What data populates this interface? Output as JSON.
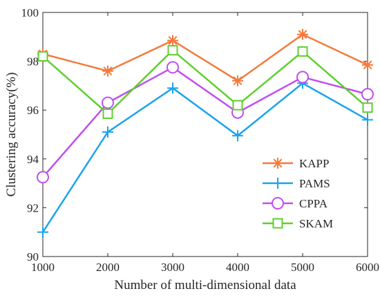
{
  "chart_data": {
    "type": "line",
    "xlabel": "Number of multi-dimensional data",
    "ylabel": "Clustering accuracy(%)",
    "x": [
      1000,
      2000,
      3000,
      4000,
      5000,
      6000
    ],
    "x_ticks": [
      1000,
      2000,
      3000,
      4000,
      5000,
      6000
    ],
    "y_ticks": [
      90,
      92,
      94,
      96,
      98,
      100
    ],
    "xlim": [
      1000,
      6000
    ],
    "ylim": [
      90,
      100
    ],
    "grid": false,
    "legend_position": "lower-right",
    "series": [
      {
        "name": "KAPP",
        "color": "#f47a3b",
        "marker": "asterisk",
        "values": [
          98.3,
          97.6,
          98.85,
          97.2,
          99.1,
          97.85
        ]
      },
      {
        "name": "PAMS",
        "color": "#1aa3ec",
        "marker": "plus",
        "values": [
          91.0,
          95.1,
          96.9,
          94.95,
          97.1,
          95.6
        ]
      },
      {
        "name": "CPPA",
        "color": "#c04ef0",
        "marker": "circle",
        "values": [
          93.25,
          96.3,
          97.75,
          95.9,
          97.35,
          96.65
        ]
      },
      {
        "name": "SKAM",
        "color": "#5fcf2e",
        "marker": "square",
        "values": [
          98.2,
          95.85,
          98.45,
          96.2,
          98.4,
          96.1
        ]
      }
    ]
  }
}
